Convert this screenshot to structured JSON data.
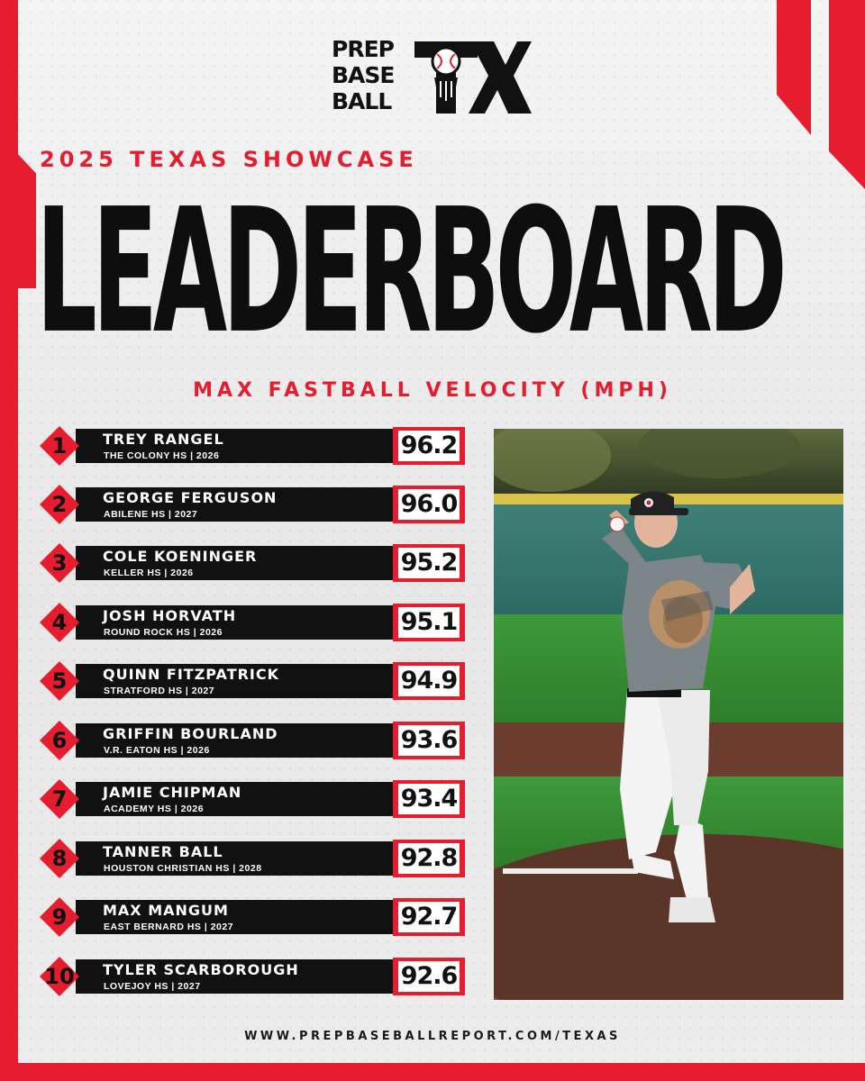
{
  "brand": {
    "logo_words": [
      "PREP",
      "BASE",
      "BALL"
    ],
    "logo_mark": "TX",
    "colors": {
      "red": "#e51d2e",
      "black": "#111111",
      "background": "#ececec"
    }
  },
  "header": {
    "eyebrow": "2025 TEXAS SHOWCASE",
    "title": "LEADERBOARD",
    "subtitle": "MAX FASTBALL VELOCITY (MPH)"
  },
  "leaderboard": [
    {
      "rank": "1",
      "name": "TREY RANGEL",
      "school": "THE COLONY HS | 2026",
      "velocity": "96.2"
    },
    {
      "rank": "2",
      "name": "GEORGE FERGUSON",
      "school": "ABILENE HS | 2027",
      "velocity": "96.0"
    },
    {
      "rank": "3",
      "name": "COLE KOENINGER",
      "school": "KELLER HS | 2026",
      "velocity": "95.2"
    },
    {
      "rank": "4",
      "name": "JOSH HORVATH",
      "school": "ROUND ROCK HS | 2026",
      "velocity": "95.1"
    },
    {
      "rank": "5",
      "name": "QUINN FITZPATRICK",
      "school": "STRATFORD HS | 2027",
      "velocity": "94.9"
    },
    {
      "rank": "6",
      "name": "GRIFFIN BOURLAND",
      "school": "V.R. EATON HS | 2026",
      "velocity": "93.6"
    },
    {
      "rank": "7",
      "name": "JAMIE CHIPMAN",
      "school": "ACADEMY HS | 2026",
      "velocity": "93.4"
    },
    {
      "rank": "8",
      "name": "TANNER BALL",
      "school": "HOUSTON CHRISTIAN HS | 2028",
      "velocity": "92.8"
    },
    {
      "rank": "9",
      "name": "MAX MANGUM",
      "school": "EAST BERNARD HS | 2027",
      "velocity": "92.7"
    },
    {
      "rank": "10",
      "name": "TYLER SCARBOROUGH",
      "school": "LOVEJOY HS | 2027",
      "velocity": "92.6"
    }
  ],
  "photo": {
    "subject": "pitcher-photo"
  },
  "footer": {
    "url": "WWW.PREPBASEBALLREPORT.COM/TEXAS"
  }
}
